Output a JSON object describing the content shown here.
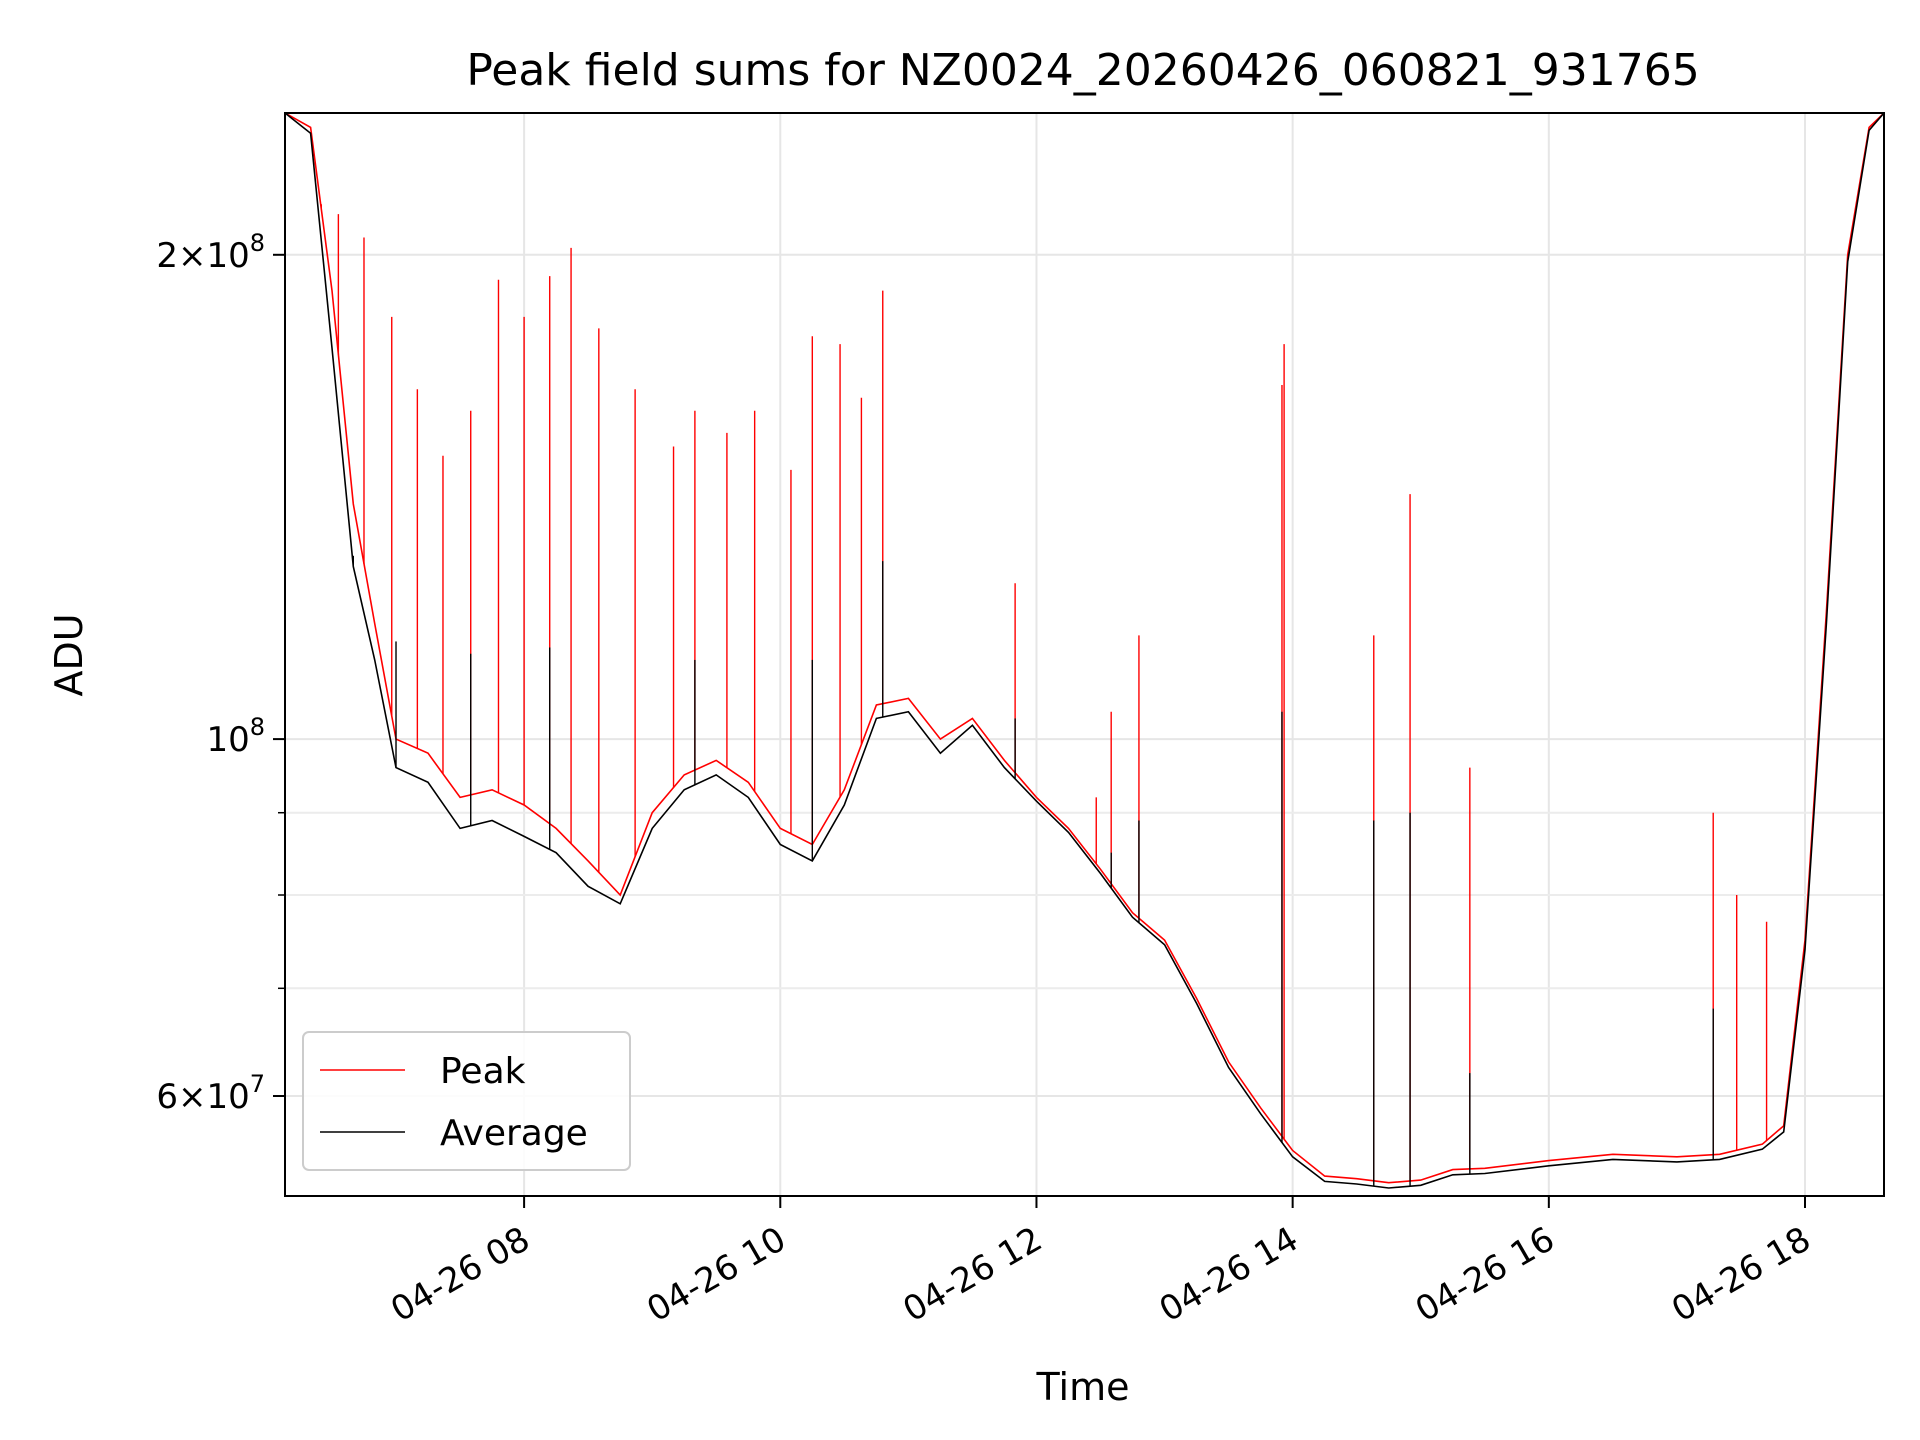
{
  "chart_data": {
    "type": "line",
    "title": "Peak field sums for NZ0024_20260426_060821_931765",
    "xlabel": "Time",
    "ylabel": "ADU",
    "yscale": "log",
    "xlim": [
      "2026-04-26 06:08",
      "2026-04-26 18:37"
    ],
    "ylim": [
      52000000,
      245000000
    ],
    "grid": true,
    "legend_position": "lower-left",
    "x_ticks": [
      {
        "label": "04-26 08",
        "t": "2026-04-26 08:00"
      },
      {
        "label": "04-26 10",
        "t": "2026-04-26 10:00"
      },
      {
        "label": "04-26 12",
        "t": "2026-04-26 12:00"
      },
      {
        "label": "04-26 14",
        "t": "2026-04-26 14:00"
      },
      {
        "label": "04-26 16",
        "t": "2026-04-26 16:00"
      },
      {
        "label": "04-26 18",
        "t": "2026-04-26 18:00"
      }
    ],
    "y_major_ticks": [
      {
        "value": 60000000,
        "label_mantissa": "6",
        "label_base": "10",
        "label_exp": "7"
      },
      {
        "value": 100000000,
        "label_mantissa": "",
        "label_base": "10",
        "label_exp": "8"
      },
      {
        "value": 200000000,
        "label_mantissa": "2",
        "label_base": "10",
        "label_exp": "8"
      }
    ],
    "y_minor_ticks": [
      70000000,
      80000000,
      90000000
    ],
    "series": [
      {
        "name": "Peak",
        "color": "#ff0000",
        "points": [
          [
            "2026-04-26 06:08",
            245000000
          ],
          [
            "2026-04-26 06:20",
            240000000
          ],
          [
            "2026-04-26 06:30",
            190000000
          ],
          [
            "2026-04-26 06:40",
            140000000
          ],
          [
            "2026-04-26 06:50",
            118000000
          ],
          [
            "2026-04-26 07:00",
            100000000
          ],
          [
            "2026-04-26 07:15",
            98000000
          ],
          [
            "2026-04-26 07:30",
            92000000
          ],
          [
            "2026-04-26 07:45",
            93000000
          ],
          [
            "2026-04-26 08:00",
            91000000
          ],
          [
            "2026-04-26 08:15",
            88000000
          ],
          [
            "2026-04-26 08:30",
            84000000
          ],
          [
            "2026-04-26 08:45",
            80000000
          ],
          [
            "2026-04-26 09:00",
            90000000
          ],
          [
            "2026-04-26 09:15",
            95000000
          ],
          [
            "2026-04-26 09:30",
            97000000
          ],
          [
            "2026-04-26 09:45",
            94000000
          ],
          [
            "2026-04-26 10:00",
            88000000
          ],
          [
            "2026-04-26 10:15",
            86000000
          ],
          [
            "2026-04-26 10:30",
            93000000
          ],
          [
            "2026-04-26 10:45",
            105000000
          ],
          [
            "2026-04-26 11:00",
            106000000
          ],
          [
            "2026-04-26 11:15",
            100000000
          ],
          [
            "2026-04-26 11:30",
            103000000
          ],
          [
            "2026-04-26 11:45",
            97000000
          ],
          [
            "2026-04-26 12:00",
            92000000
          ],
          [
            "2026-04-26 12:15",
            88000000
          ],
          [
            "2026-04-26 12:30",
            83000000
          ],
          [
            "2026-04-26 12:45",
            78000000
          ],
          [
            "2026-04-26 13:00",
            75000000
          ],
          [
            "2026-04-26 13:15",
            69000000
          ],
          [
            "2026-04-26 13:30",
            63000000
          ],
          [
            "2026-04-26 13:45",
            59000000
          ],
          [
            "2026-04-26 14:00",
            55500000
          ],
          [
            "2026-04-26 14:15",
            53500000
          ],
          [
            "2026-04-26 14:30",
            53300000
          ],
          [
            "2026-04-26 14:45",
            53000000
          ],
          [
            "2026-04-26 15:00",
            53200000
          ],
          [
            "2026-04-26 15:15",
            54000000
          ],
          [
            "2026-04-26 15:30",
            54100000
          ],
          [
            "2026-04-26 16:00",
            54700000
          ],
          [
            "2026-04-26 16:30",
            55200000
          ],
          [
            "2026-04-26 17:00",
            55000000
          ],
          [
            "2026-04-26 17:20",
            55200000
          ],
          [
            "2026-04-26 17:40",
            56000000
          ],
          [
            "2026-04-26 17:50",
            57500000
          ],
          [
            "2026-04-26 18:00",
            75000000
          ],
          [
            "2026-04-26 18:10",
            120000000
          ],
          [
            "2026-04-26 18:20",
            200000000
          ],
          [
            "2026-04-26 18:30",
            240000000
          ],
          [
            "2026-04-26 18:37",
            245000000
          ]
        ],
        "spikes": [
          [
            "2026-04-26 06:25",
            215000000
          ],
          [
            "2026-04-26 06:33",
            212000000
          ],
          [
            "2026-04-26 06:45",
            205000000
          ],
          [
            "2026-04-26 06:58",
            183000000
          ],
          [
            "2026-04-26 07:10",
            165000000
          ],
          [
            "2026-04-26 07:22",
            150000000
          ],
          [
            "2026-04-26 07:35",
            160000000
          ],
          [
            "2026-04-26 07:48",
            193000000
          ],
          [
            "2026-04-26 08:00",
            183000000
          ],
          [
            "2026-04-26 08:12",
            194000000
          ],
          [
            "2026-04-26 08:22",
            202000000
          ],
          [
            "2026-04-26 08:35",
            180000000
          ],
          [
            "2026-04-26 08:52",
            165000000
          ],
          [
            "2026-04-26 09:10",
            152000000
          ],
          [
            "2026-04-26 09:20",
            160000000
          ],
          [
            "2026-04-26 09:35",
            155000000
          ],
          [
            "2026-04-26 09:48",
            160000000
          ],
          [
            "2026-04-26 10:05",
            147000000
          ],
          [
            "2026-04-26 10:15",
            178000000
          ],
          [
            "2026-04-26 10:28",
            176000000
          ],
          [
            "2026-04-26 10:38",
            163000000
          ],
          [
            "2026-04-26 10:48",
            190000000
          ],
          [
            "2026-04-26 11:50",
            125000000
          ],
          [
            "2026-04-26 12:28",
            92000000
          ],
          [
            "2026-04-26 12:35",
            104000000
          ],
          [
            "2026-04-26 12:48",
            116000000
          ],
          [
            "2026-04-26 13:55",
            166000000
          ],
          [
            "2026-04-26 13:56",
            176000000
          ],
          [
            "2026-04-26 14:38",
            116000000
          ],
          [
            "2026-04-26 14:55",
            142000000
          ],
          [
            "2026-04-26 15:23",
            96000000
          ],
          [
            "2026-04-26 17:17",
            90000000
          ],
          [
            "2026-04-26 17:28",
            80000000
          ],
          [
            "2026-04-26 17:42",
            77000000
          ]
        ]
      },
      {
        "name": "Average",
        "color": "#000000",
        "points": [
          [
            "2026-04-26 06:08",
            245000000
          ],
          [
            "2026-04-26 06:20",
            238000000
          ],
          [
            "2026-04-26 06:30",
            175000000
          ],
          [
            "2026-04-26 06:40",
            128000000
          ],
          [
            "2026-04-26 06:50",
            112000000
          ],
          [
            "2026-04-26 07:00",
            96000000
          ],
          [
            "2026-04-26 07:15",
            94000000
          ],
          [
            "2026-04-26 07:30",
            88000000
          ],
          [
            "2026-04-26 07:45",
            89000000
          ],
          [
            "2026-04-26 08:00",
            87000000
          ],
          [
            "2026-04-26 08:15",
            85000000
          ],
          [
            "2026-04-26 08:30",
            81000000
          ],
          [
            "2026-04-26 08:45",
            79000000
          ],
          [
            "2026-04-26 09:00",
            88000000
          ],
          [
            "2026-04-26 09:15",
            93000000
          ],
          [
            "2026-04-26 09:30",
            95000000
          ],
          [
            "2026-04-26 09:45",
            92000000
          ],
          [
            "2026-04-26 10:00",
            86000000
          ],
          [
            "2026-04-26 10:15",
            84000000
          ],
          [
            "2026-04-26 10:30",
            91000000
          ],
          [
            "2026-04-26 10:45",
            103000000
          ],
          [
            "2026-04-26 11:00",
            104000000
          ],
          [
            "2026-04-26 11:15",
            98000000
          ],
          [
            "2026-04-26 11:30",
            102000000
          ],
          [
            "2026-04-26 11:45",
            96000000
          ],
          [
            "2026-04-26 12:00",
            91500000
          ],
          [
            "2026-04-26 12:15",
            87500000
          ],
          [
            "2026-04-26 12:30",
            82500000
          ],
          [
            "2026-04-26 12:45",
            77500000
          ],
          [
            "2026-04-26 13:00",
            74500000
          ],
          [
            "2026-04-26 13:15",
            68500000
          ],
          [
            "2026-04-26 13:30",
            62500000
          ],
          [
            "2026-04-26 13:45",
            58500000
          ],
          [
            "2026-04-26 14:00",
            55000000
          ],
          [
            "2026-04-26 14:15",
            53100000
          ],
          [
            "2026-04-26 14:30",
            52900000
          ],
          [
            "2026-04-26 14:45",
            52600000
          ],
          [
            "2026-04-26 15:00",
            52800000
          ],
          [
            "2026-04-26 15:15",
            53600000
          ],
          [
            "2026-04-26 15:30",
            53700000
          ],
          [
            "2026-04-26 16:00",
            54300000
          ],
          [
            "2026-04-26 16:30",
            54800000
          ],
          [
            "2026-04-26 17:00",
            54600000
          ],
          [
            "2026-04-26 17:20",
            54800000
          ],
          [
            "2026-04-26 17:40",
            55600000
          ],
          [
            "2026-04-26 17:50",
            57000000
          ],
          [
            "2026-04-26 18:00",
            74000000
          ],
          [
            "2026-04-26 18:10",
            118000000
          ],
          [
            "2026-04-26 18:20",
            198000000
          ],
          [
            "2026-04-26 18:30",
            239000000
          ],
          [
            "2026-04-26 18:37",
            245000000
          ]
        ],
        "spikes": [
          [
            "2026-04-26 06:40",
            130000000
          ],
          [
            "2026-04-26 07:00",
            115000000
          ],
          [
            "2026-04-26 07:35",
            113000000
          ],
          [
            "2026-04-26 08:12",
            114000000
          ],
          [
            "2026-04-26 09:20",
            112000000
          ],
          [
            "2026-04-26 10:15",
            112000000
          ],
          [
            "2026-04-26 10:48",
            129000000
          ],
          [
            "2026-04-26 11:50",
            103000000
          ],
          [
            "2026-04-26 12:35",
            85000000
          ],
          [
            "2026-04-26 12:48",
            89000000
          ],
          [
            "2026-04-26 13:55",
            104000000
          ],
          [
            "2026-04-26 14:38",
            89000000
          ],
          [
            "2026-04-26 14:55",
            90000000
          ],
          [
            "2026-04-26 15:23",
            62000000
          ],
          [
            "2026-04-26 17:17",
            68000000
          ]
        ]
      }
    ]
  }
}
